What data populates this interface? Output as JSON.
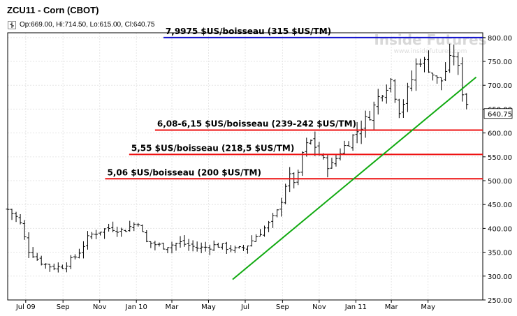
{
  "header": {
    "title": "ZCU11 - Corn (CBOT)",
    "ohlc": "Op:669.00, Hi:714.50, Lo:615.00, Cl:640.75"
  },
  "chart_data": {
    "type": "ohlc",
    "last_price_label": "640.75",
    "watermark": {
      "brand": "Inside Futures",
      "url": "www.insidefutures.com"
    },
    "y_axis": {
      "min": 250,
      "max": 810,
      "ticks": [
        "800.00",
        "750.00",
        "700.00",
        "650.00",
        "600.00",
        "550.00",
        "500.00",
        "450.00",
        "400.00",
        "350.00",
        "300.00",
        "250.00"
      ],
      "tick_values": [
        800,
        750,
        700,
        650,
        600,
        550,
        500,
        450,
        400,
        350,
        300,
        250
      ]
    },
    "x_axis": {
      "start": "2009-06-01",
      "end": "2011-07-31",
      "ticks": [
        "Jul 09",
        "Sep",
        "Nov",
        "Jan 10",
        "Mar",
        "May",
        "Jul",
        "Sep",
        "Nov",
        "Jan 11",
        "Mar",
        "May"
      ],
      "tick_dates": [
        "2009-07-01",
        "2009-09-01",
        "2009-11-01",
        "2010-01-01",
        "2010-03-01",
        "2010-05-01",
        "2010-07-01",
        "2010-09-01",
        "2010-11-01",
        "2011-01-01",
        "2011-03-01",
        "2011-05-01"
      ]
    },
    "grid": true,
    "levels": [
      {
        "value": 800,
        "color": "#1010cc",
        "start": "2010-02-15",
        "label": "7,9975 $US/boisseau (315 $US/TM)"
      },
      {
        "value": 606,
        "color": "#ee1111",
        "start": "2010-02-01",
        "label": "6,08-6,15 $US/boisseau (239-242 $US/TM)"
      },
      {
        "value": 555,
        "color": "#ee1111",
        "start": "2009-12-20",
        "label": "5,55 $US/boisseau (218,5 $US/TM)"
      },
      {
        "value": 504,
        "color": "#ee1111",
        "start": "2009-11-10",
        "label": "5,06 $US/boisseau (200 $US/TM)"
      }
    ],
    "trendline": {
      "color": "#11aa11",
      "from": {
        "date": "2010-06-10",
        "value": 293
      },
      "to": {
        "date": "2011-07-20",
        "value": 717
      }
    },
    "series_anchors": [
      [
        "2009-06-01",
        440
      ],
      [
        "2009-06-20",
        418
      ],
      [
        "2009-07-05",
        355
      ],
      [
        "2009-07-25",
        330
      ],
      [
        "2009-08-15",
        318
      ],
      [
        "2009-09-01",
        320
      ],
      [
        "2009-09-25",
        345
      ],
      [
        "2009-10-15",
        385
      ],
      [
        "2009-11-01",
        395
      ],
      [
        "2009-11-20",
        402
      ],
      [
        "2009-12-10",
        395
      ],
      [
        "2010-01-05",
        415
      ],
      [
        "2010-01-15",
        372
      ],
      [
        "2010-02-15",
        362
      ],
      [
        "2010-03-15",
        370
      ],
      [
        "2010-04-15",
        358
      ],
      [
        "2010-05-15",
        365
      ],
      [
        "2010-06-15",
        355
      ],
      [
        "2010-07-01",
        360
      ],
      [
        "2010-07-20",
        385
      ],
      [
        "2010-08-10",
        410
      ],
      [
        "2010-08-25",
        438
      ],
      [
        "2010-09-10",
        510
      ],
      [
        "2010-09-25",
        495
      ],
      [
        "2010-10-05",
        565
      ],
      [
        "2010-10-20",
        585
      ],
      [
        "2010-11-05",
        545
      ],
      [
        "2010-11-20",
        528
      ],
      [
        "2010-12-05",
        560
      ],
      [
        "2010-12-25",
        590
      ],
      [
        "2011-01-10",
        615
      ],
      [
        "2011-01-25",
        640
      ],
      [
        "2011-02-10",
        682
      ],
      [
        "2011-02-28",
        712
      ],
      [
        "2011-03-15",
        645
      ],
      [
        "2011-04-01",
        700
      ],
      [
        "2011-04-15",
        758
      ],
      [
        "2011-05-01",
        740
      ],
      [
        "2011-05-20",
        702
      ],
      [
        "2011-06-05",
        748
      ],
      [
        "2011-06-15",
        770
      ],
      [
        "2011-06-25",
        695
      ],
      [
        "2011-07-05",
        660
      ],
      [
        "2011-07-10",
        641
      ]
    ]
  }
}
